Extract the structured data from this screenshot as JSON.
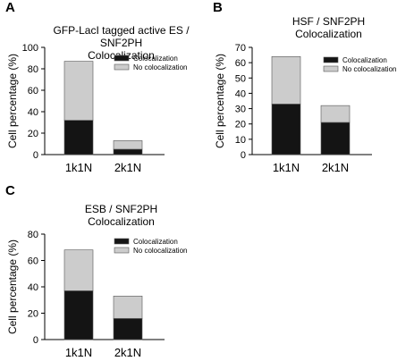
{
  "panels": [
    {
      "letter": "A",
      "title_lines": [
        "GFP-LacI tagged active ES / SNF2PH",
        "Colocalization"
      ],
      "chart_data": {
        "type": "bar",
        "stacked": true,
        "categories": [
          "1k1N",
          "2k1N"
        ],
        "series": [
          {
            "name": "Colocalization",
            "values": [
              32,
              5
            ],
            "color": "#141414"
          },
          {
            "name": "No colocalization",
            "values": [
              55,
              8
            ],
            "color": "#cccccc"
          }
        ],
        "ylabel": "Cell percentage (%)",
        "xlabel": "",
        "ylim": [
          0,
          100
        ],
        "yticks": [
          0,
          20,
          40,
          60,
          80,
          100
        ],
        "legend": "top-right"
      }
    },
    {
      "letter": "B",
      "title_lines": [
        "HSF / SNF2PH",
        "Colocalization"
      ],
      "chart_data": {
        "type": "bar",
        "stacked": true,
        "categories": [
          "1k1N",
          "2k1N"
        ],
        "series": [
          {
            "name": "Colocalization",
            "values": [
              33,
              21
            ],
            "color": "#141414"
          },
          {
            "name": "No colocalization",
            "values": [
              31,
              11
            ],
            "color": "#cccccc"
          }
        ],
        "ylabel": "Cell percentage (%)",
        "xlabel": "",
        "ylim": [
          0,
          70
        ],
        "yticks": [
          0,
          10,
          20,
          30,
          40,
          50,
          60,
          70
        ],
        "legend": "top-right"
      }
    },
    {
      "letter": "C",
      "title_lines": [
        "ESB / SNF2PH",
        "Colocalization"
      ],
      "chart_data": {
        "type": "bar",
        "stacked": true,
        "categories": [
          "1k1N",
          "2k1N"
        ],
        "series": [
          {
            "name": "Colocalization",
            "values": [
              37,
              16
            ],
            "color": "#141414"
          },
          {
            "name": "No colocalization",
            "values": [
              31,
              17
            ],
            "color": "#cccccc"
          }
        ],
        "ylabel": "Cell percentage (%)",
        "xlabel": "",
        "ylim": [
          0,
          80
        ],
        "yticks": [
          0,
          20,
          40,
          60,
          80
        ],
        "legend": "top-right"
      }
    }
  ]
}
